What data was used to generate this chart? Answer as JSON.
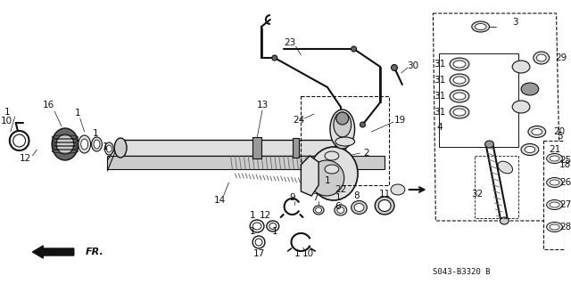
{
  "bg_color": "#ffffff",
  "diagram_code": "S043-B3320 B",
  "line_color": "#222222",
  "gray1": "#888888",
  "gray2": "#bbbbbb",
  "gray3": "#dddddd"
}
